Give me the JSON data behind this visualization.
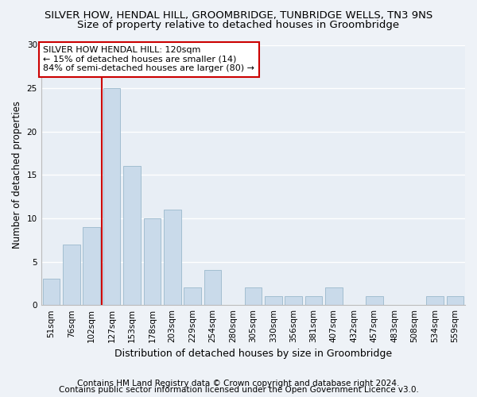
{
  "title1": "SILVER HOW, HENDAL HILL, GROOMBRIDGE, TUNBRIDGE WELLS, TN3 9NS",
  "title2": "Size of property relative to detached houses in Groombridge",
  "xlabel": "Distribution of detached houses by size in Groombridge",
  "ylabel": "Number of detached properties",
  "categories": [
    "51sqm",
    "76sqm",
    "102sqm",
    "127sqm",
    "153sqm",
    "178sqm",
    "203sqm",
    "229sqm",
    "254sqm",
    "280sqm",
    "305sqm",
    "330sqm",
    "356sqm",
    "381sqm",
    "407sqm",
    "432sqm",
    "457sqm",
    "483sqm",
    "508sqm",
    "534sqm",
    "559sqm"
  ],
  "values": [
    3,
    7,
    9,
    25,
    16,
    10,
    11,
    2,
    4,
    0,
    2,
    1,
    1,
    1,
    2,
    0,
    1,
    0,
    0,
    1,
    1
  ],
  "bar_color": "#c9daea",
  "bar_edge_color": "#9ab8cc",
  "annotation_text": "SILVER HOW HENDAL HILL: 120sqm\n← 15% of detached houses are smaller (14)\n84% of semi-detached houses are larger (80) →",
  "annotation_box_facecolor": "#ffffff",
  "annotation_box_edgecolor": "#cc0000",
  "vline_color": "#cc0000",
  "vline_x": 2.5,
  "footer1": "Contains HM Land Registry data © Crown copyright and database right 2024.",
  "footer2": "Contains public sector information licensed under the Open Government Licence v3.0.",
  "ylim": [
    0,
    30
  ],
  "yticks": [
    0,
    5,
    10,
    15,
    20,
    25,
    30
  ],
  "fig_facecolor": "#eef2f7",
  "ax_facecolor": "#e8eef5",
  "grid_color": "#ffffff",
  "title1_fontsize": 9.5,
  "title2_fontsize": 9.5,
  "ylabel_fontsize": 8.5,
  "xlabel_fontsize": 9,
  "tick_fontsize": 7.5,
  "annotation_fontsize": 8,
  "footer_fontsize": 7.5
}
